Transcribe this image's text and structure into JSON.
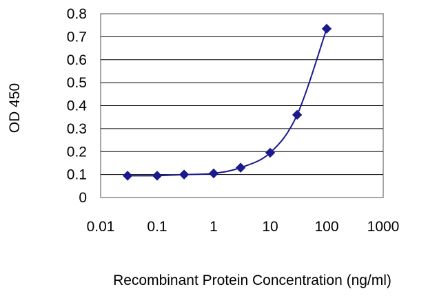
{
  "chart_data": {
    "type": "line",
    "xlabel": "Recombinant Protein Concentration (ng/ml)",
    "ylabel": "OD 450",
    "x_scale": "log",
    "xlim": [
      0.01,
      1000
    ],
    "ylim": [
      0,
      0.8
    ],
    "x_ticks": [
      "0.01",
      "0.1",
      "1",
      "10",
      "100",
      "1000"
    ],
    "y_ticks": [
      "0",
      "0.1",
      "0.2",
      "0.3",
      "0.4",
      "0.5",
      "0.6",
      "0.7",
      "0.8"
    ],
    "grid": "horizontal",
    "series": [
      {
        "color": "#1a1a8c",
        "marker": "diamond",
        "x": [
          0.03,
          0.1,
          0.3,
          1,
          3,
          10,
          30,
          100
        ],
        "y": [
          0.095,
          0.095,
          0.1,
          0.105,
          0.13,
          0.195,
          0.36,
          0.735
        ]
      }
    ],
    "colors": {
      "plot_background": "#ffffff",
      "frame": "#888888",
      "gridline": "#000000"
    }
  }
}
